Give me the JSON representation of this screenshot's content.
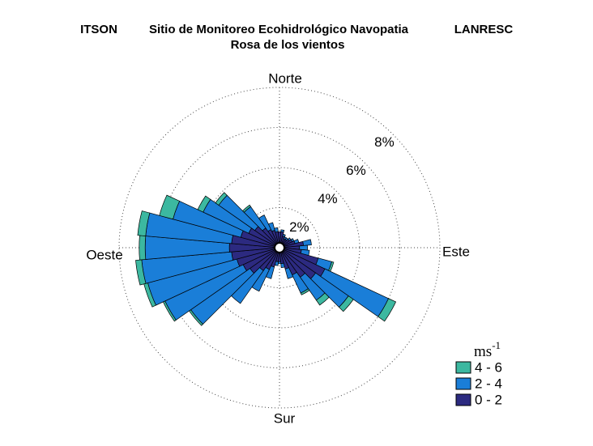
{
  "chart_data": {
    "type": "wind_rose",
    "title_left": "ITSON",
    "title": "Sitio de Monitoreo Ecohidrológico Navopatia",
    "title_right": "LANRESC",
    "subtitle": "Rosa de los vientos",
    "compass": {
      "north": "Norte",
      "east": "Este",
      "south": "Sur",
      "west": "Oeste"
    },
    "directions": [
      0,
      10,
      20,
      30,
      40,
      50,
      60,
      70,
      80,
      90,
      100,
      110,
      120,
      130,
      140,
      150,
      160,
      170,
      180,
      190,
      200,
      210,
      220,
      230,
      240,
      250,
      260,
      270,
      280,
      290,
      300,
      310,
      320,
      330,
      340,
      350
    ],
    "rlim": [
      0,
      8
    ],
    "rticks": [
      {
        "value": 2,
        "label": "2%"
      },
      {
        "value": 4,
        "label": "4%"
      },
      {
        "value": 6,
        "label": "6%"
      },
      {
        "value": 8,
        "label": "8%"
      }
    ],
    "legend_title": {
      "base": "ms",
      "sup": "-1"
    },
    "series": [
      {
        "name": "4 - 6",
        "color": "#3cb8a0",
        "values": [
          0,
          0,
          0,
          0,
          0,
          0,
          0,
          0,
          0,
          0,
          0,
          0.1,
          0.4,
          0.3,
          0.3,
          0.1,
          0,
          0,
          0,
          0,
          0,
          0,
          0,
          0.1,
          0.1,
          0.2,
          0.3,
          0.3,
          0.4,
          0.7,
          0.3,
          0.2,
          0.1,
          0,
          0,
          0
        ]
      },
      {
        "name": "2 - 4",
        "color": "#1a7ed8",
        "values": [
          0,
          0.1,
          0.1,
          0.1,
          0.1,
          0.1,
          0.1,
          0.2,
          0.4,
          0.4,
          0.4,
          0.7,
          3.5,
          2.0,
          1.4,
          1.0,
          0.5,
          0.2,
          0.1,
          0.2,
          0.6,
          1.2,
          2.0,
          3.6,
          4.3,
          4.6,
          4.5,
          4.2,
          4.3,
          3.5,
          2.5,
          2.2,
          1.3,
          0.8,
          0.4,
          0.2
        ]
      },
      {
        "name": "0 - 2",
        "color": "#2c2a80",
        "values": [
          0.8,
          0.8,
          0.6,
          0.5,
          0.5,
          0.6,
          0.7,
          0.8,
          1.2,
          1.0,
          1.1,
          2.0,
          2.5,
          2.2,
          1.8,
          1.5,
          1.1,
          0.8,
          0.7,
          0.7,
          1.0,
          1.2,
          1.4,
          1.8,
          2.0,
          2.2,
          2.4,
          2.5,
          2.4,
          2.0,
          1.7,
          1.5,
          1.2,
          1.0,
          0.9,
          0.8
        ]
      }
    ]
  }
}
